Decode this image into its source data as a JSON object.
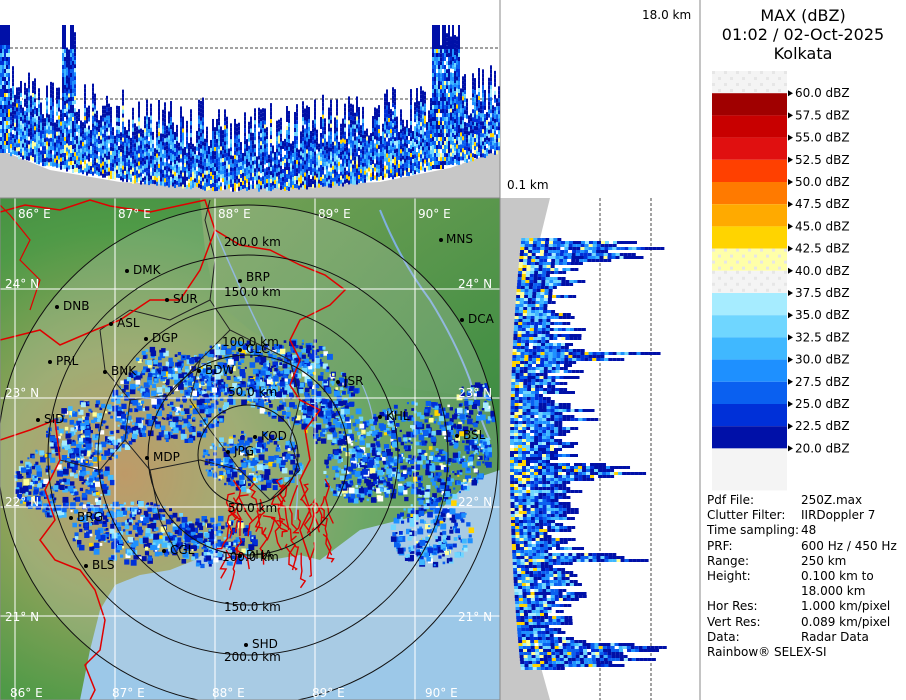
{
  "header": {
    "product": "MAX (dBZ)",
    "datetime": "01:02 / 02-Oct-2025",
    "station": "Kolkata"
  },
  "profile_labels": {
    "top_height": "18.0 km",
    "bottom_height": "0.1 km"
  },
  "legend": {
    "entries": [
      {
        "label": "60.0 dBZ",
        "color": "#ffffff"
      },
      {
        "label": "57.5 dBZ",
        "color": "#a00000"
      },
      {
        "label": "55.0 dBZ",
        "color": "#c80000"
      },
      {
        "label": "52.5 dBZ",
        "color": "#e01010"
      },
      {
        "label": "50.0 dBZ",
        "color": "#ff4000"
      },
      {
        "label": "47.5 dBZ",
        "color": "#ff7a00"
      },
      {
        "label": "45.0 dBZ",
        "color": "#ffaa00"
      },
      {
        "label": "42.5 dBZ",
        "color": "#ffd400"
      },
      {
        "label": "40.0 dBZ",
        "color": "#ffff99"
      },
      {
        "label": "37.5 dBZ",
        "color": "#ffffff"
      },
      {
        "label": "35.0 dBZ",
        "color": "#a6ecff"
      },
      {
        "label": "32.5 dBZ",
        "color": "#6fd6ff"
      },
      {
        "label": "30.0 dBZ",
        "color": "#40b8ff"
      },
      {
        "label": "27.5 dBZ",
        "color": "#1e90ff"
      },
      {
        "label": "25.0 dBZ",
        "color": "#0a60f0"
      },
      {
        "label": "22.5 dBZ",
        "color": "#0030d8"
      },
      {
        "label": "20.0 dBZ",
        "color": "#0010a8"
      }
    ]
  },
  "map": {
    "longitudes": [
      "86° E",
      "87° E",
      "88° E",
      "89° E",
      "90° E"
    ],
    "latitudes": [
      "24° N",
      "23° N",
      "22° N",
      "21° N"
    ],
    "range_rings": [
      "50.0 km",
      "100.0 km",
      "150.0 km",
      "200.0 km"
    ],
    "stations": [
      {
        "code": "MNS"
      },
      {
        "code": "DMK"
      },
      {
        "code": "BRP"
      },
      {
        "code": "DNB"
      },
      {
        "code": "SUR"
      },
      {
        "code": "ASL"
      },
      {
        "code": "DCA"
      },
      {
        "code": "DGP"
      },
      {
        "code": "PRL"
      },
      {
        "code": "BNK"
      },
      {
        "code": "BDW"
      },
      {
        "code": "JSR"
      },
      {
        "code": "KHL"
      },
      {
        "code": "SID"
      },
      {
        "code": "BSL"
      },
      {
        "code": "MDP"
      },
      {
        "code": "KOD"
      },
      {
        "code": "JPG"
      },
      {
        "code": "BRG"
      },
      {
        "code": "CGL"
      },
      {
        "code": "BLS"
      },
      {
        "code": "DHA"
      },
      {
        "code": "SHD"
      },
      {
        "code": "CLC"
      }
    ]
  },
  "info": {
    "rows": [
      {
        "key": "Pdf File:",
        "value": "250Z.max"
      },
      {
        "key": "Clutter Filter:",
        "value": "IIRDoppler 7"
      },
      {
        "key": "Time sampling:",
        "value": "48"
      },
      {
        "key": "PRF:",
        "value": "600 Hz / 450 Hz"
      },
      {
        "key": "Range:",
        "value": "250 km"
      },
      {
        "key": "Height:",
        "value": "0.100 km to"
      },
      {
        "key": "",
        "value": "18.000 km"
      },
      {
        "key": "Hor Res:",
        "value": "1.000 km/pixel"
      },
      {
        "key": "Vert Res:",
        "value": "0.089 km/pixel"
      },
      {
        "key": "Data:",
        "value": "Radar Data"
      }
    ],
    "footer": "Rainbow® SELEX-SI"
  }
}
